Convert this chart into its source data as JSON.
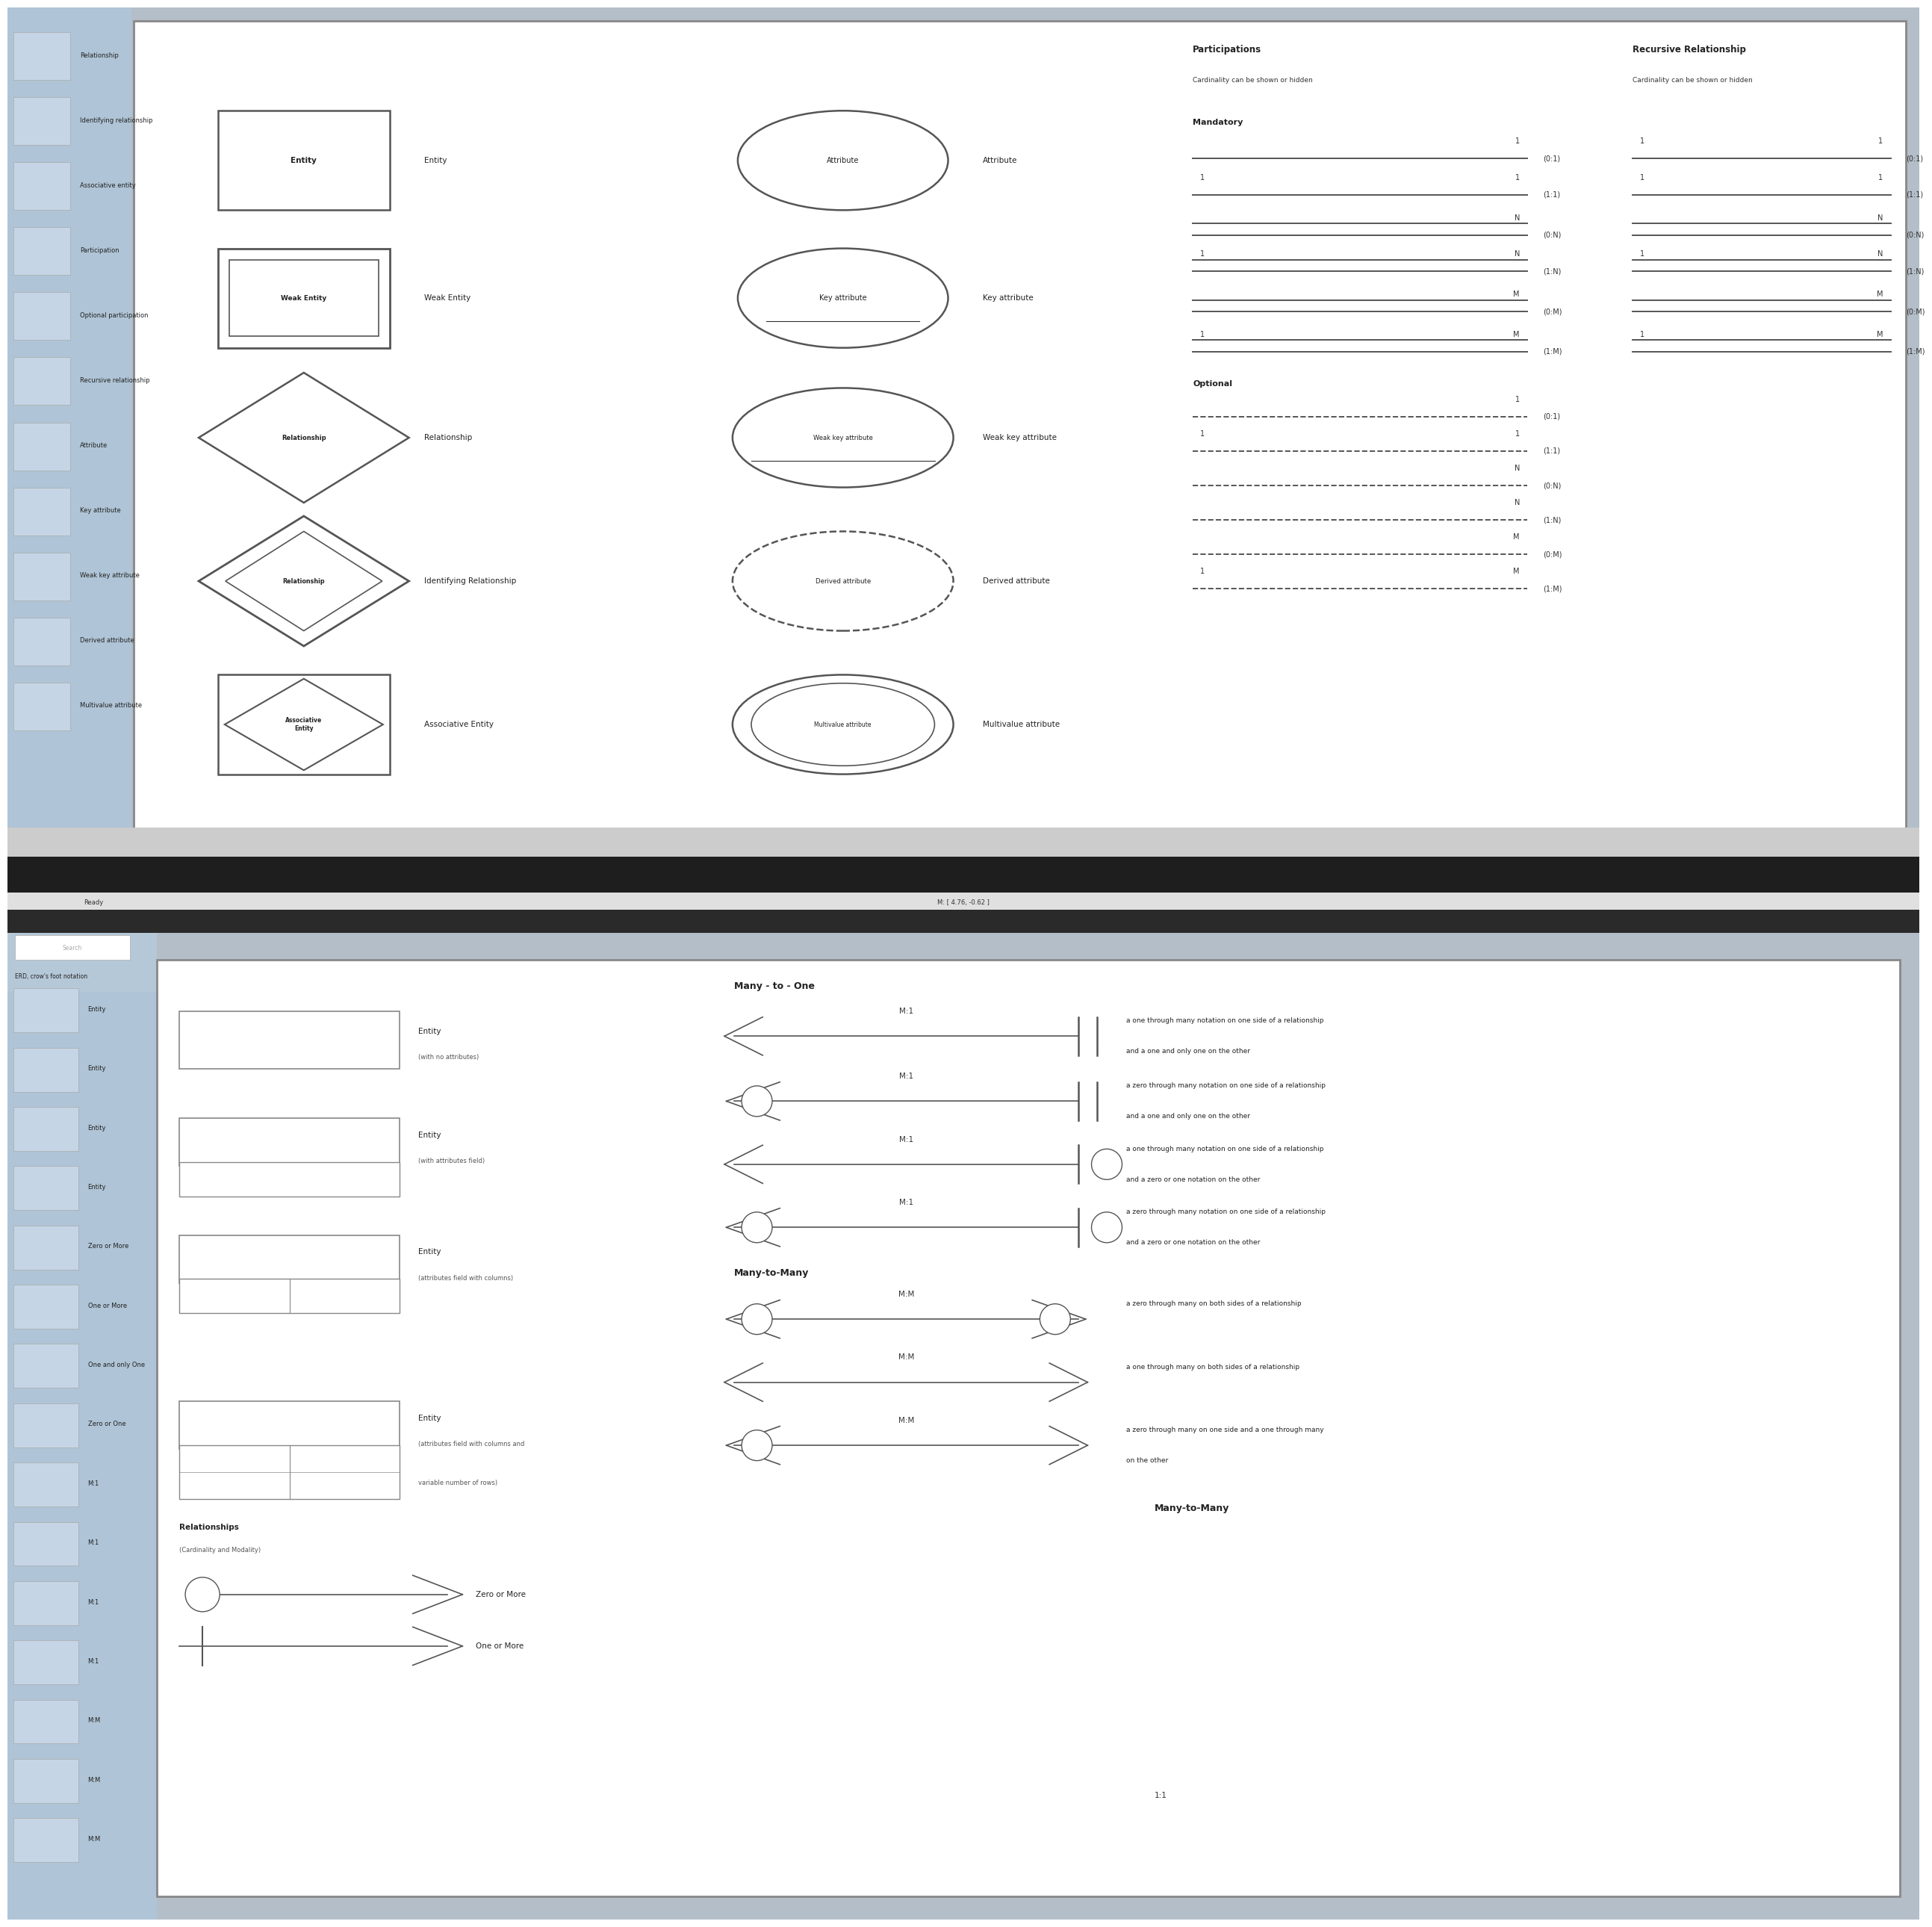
{
  "bg_color": "#b3bec8",
  "panel_bg": "#ffffff",
  "sidebar_bg": "#afc4d6",
  "toolbar_dark": "#2b2b2b",
  "toolbar_light": "#cccccc",
  "status_bg": "#e8e8e8",
  "line_color": "#555555",
  "text_dark": "#222222",
  "border_color": "#888888",
  "icon_bg": "#c8d8e8",
  "top_sidebar_labels": [
    "Relationship",
    "Identifying relationship",
    "Associative entity",
    "Participation",
    "Optional participation",
    "Recursive relationship",
    "Attribute",
    "Key attribute",
    "Weak key attribute",
    "Derived attribute",
    "Multivalue attribute"
  ],
  "bottom_sidebar_labels": [
    "Entity",
    "Entity",
    "Entity",
    "Entity",
    "Zero or More",
    "One or More",
    "One and only One",
    "Zero or One",
    "M:1",
    "M:1",
    "M:1",
    "M:1",
    "M:M",
    "M:M",
    "M:M"
  ],
  "mandatory_lines": [
    {
      "left": null,
      "right": "1",
      "paren": "(0:1)",
      "double": false
    },
    {
      "left": "1",
      "right": "1",
      "paren": "(1:1)",
      "double": false
    },
    {
      "left": null,
      "right": "N",
      "paren": "(0:N)",
      "double": true
    },
    {
      "left": "1",
      "right": "N",
      "paren": "(1:N)",
      "double": true
    },
    {
      "left": null,
      "right": "M",
      "paren": "(0:M)",
      "double": true
    },
    {
      "left": "1",
      "right": "M",
      "paren": "(1:M)",
      "double": true
    }
  ],
  "optional_lines": [
    {
      "left": null,
      "right": "1",
      "paren": "(0:1)"
    },
    {
      "left": "1",
      "right": "1",
      "paren": "(1:1)"
    },
    {
      "left": null,
      "right": "N",
      "paren": "(0:N)"
    },
    {
      "left": null,
      "right": "N",
      "paren": "(1:N)"
    },
    {
      "left": null,
      "right": "M",
      "paren": "(0:M)"
    },
    {
      "left": "1",
      "right": "M",
      "paren": "(1:M)"
    }
  ],
  "rec_mandatory_lines": [
    {
      "left": "1",
      "right": "1",
      "paren": "(0:1)",
      "double": false
    },
    {
      "left": "1",
      "right": "1",
      "paren": "(1:1)",
      "double": false
    },
    {
      "left": null,
      "right": "N",
      "paren": "(0:N)",
      "double": true
    },
    {
      "left": "1",
      "right": "N",
      "paren": "(1:N)",
      "double": true
    },
    {
      "left": null,
      "right": "M",
      "paren": "(0:M)",
      "double": true
    },
    {
      "left": "1",
      "right": "M",
      "paren": "(1:M)",
      "double": true
    }
  ],
  "m1_rows": [
    {
      "left_style": "crow",
      "right_style": "double_bar",
      "desc1": "a one through many notation on one side of a relationship",
      "desc2": "and a one and only one on the other"
    },
    {
      "left_style": "circle_crow",
      "right_style": "double_bar",
      "desc1": "a zero through many notation on one side of a relationship",
      "desc2": "and a one and only one on the other"
    },
    {
      "left_style": "crow",
      "right_style": "circle_bar",
      "desc1": "a one through many notation on one side of a relationship",
      "desc2": "and a zero or one notation on the other"
    },
    {
      "left_style": "circle_crow",
      "right_style": "circle_bar",
      "desc1": "a zero through many notation on one side of a relationship",
      "desc2": "and a zero or one notation on the other"
    }
  ],
  "mm_rows": [
    {
      "left_style": "circle_crow",
      "right_style": "circle_crow_r",
      "desc1": "a zero through many on both sides of a relationship",
      "desc2": null
    },
    {
      "left_style": "crow",
      "right_style": "crow_r",
      "desc1": "a one through many on both sides of a relationship",
      "desc2": null
    },
    {
      "left_style": "circle_crow",
      "right_style": "crow_r",
      "desc1": "a zero through many on one side and a one through many",
      "desc2": "on the other"
    }
  ]
}
